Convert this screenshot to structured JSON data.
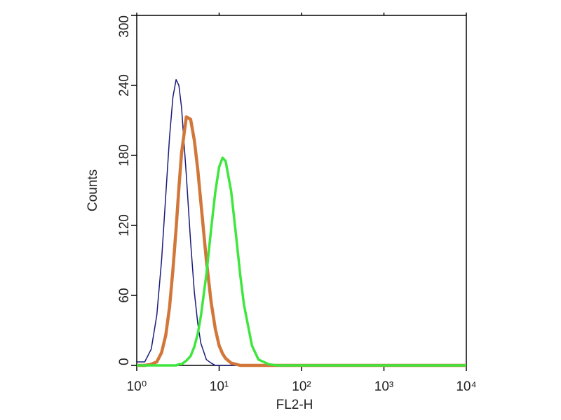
{
  "chart_data": {
    "type": "line",
    "x_label": "FL2-H",
    "y_label": "Counts",
    "xscale": "log",
    "x": [
      1,
      1.25,
      1.5,
      1.75,
      2,
      2.25,
      2.5,
      2.75,
      3,
      3.25,
      3.5,
      4,
      4.5,
      5,
      5.5,
      6,
      7,
      8,
      9,
      10,
      11,
      12,
      14,
      16,
      18,
      20,
      25,
      30,
      40,
      50,
      60,
      80,
      100,
      1000,
      10000
    ],
    "series": [
      {
        "color": "#1a1a7a",
        "width": 1.5,
        "values": [
          3,
          3,
          14,
          43,
          90,
          146,
          196,
          230,
          245,
          240,
          221,
          163,
          106,
          63,
          36,
          19,
          5,
          2,
          0,
          0,
          0,
          0,
          0,
          0,
          0,
          0,
          0,
          0,
          0,
          0,
          0,
          0,
          0,
          0,
          0
        ]
      },
      {
        "color": "#d2773a",
        "width": 4.5,
        "values": [
          0,
          0,
          1,
          3,
          11,
          26,
          50,
          82,
          117,
          152,
          182,
          213,
          211,
          193,
          168,
          140,
          90,
          54,
          31,
          17,
          10,
          6,
          2,
          1,
          0,
          0,
          0,
          0,
          0,
          0,
          0,
          0,
          0,
          0,
          0
        ]
      },
      {
        "color": "#3ee63e",
        "width": 3.5,
        "values": [
          0,
          0,
          0,
          0,
          0,
          0,
          0,
          0,
          0,
          1,
          1,
          4,
          8,
          16,
          27,
          42,
          78,
          117,
          149,
          170,
          178,
          175,
          149,
          112,
          78,
          52,
          17,
          5,
          1,
          0,
          0,
          0,
          0,
          0,
          0
        ]
      }
    ],
    "xlim": [
      1,
      10000
    ],
    "xticks": [
      {
        "value": 1,
        "label": "10⁰"
      },
      {
        "value": 10,
        "label": "10¹"
      },
      {
        "value": 100,
        "label": "10²"
      },
      {
        "value": 1000,
        "label": "10³"
      },
      {
        "value": 10000,
        "label": "10⁴"
      }
    ],
    "ylim": [
      0,
      300
    ],
    "yticks": [
      0,
      60,
      120,
      180,
      240,
      300
    ]
  }
}
